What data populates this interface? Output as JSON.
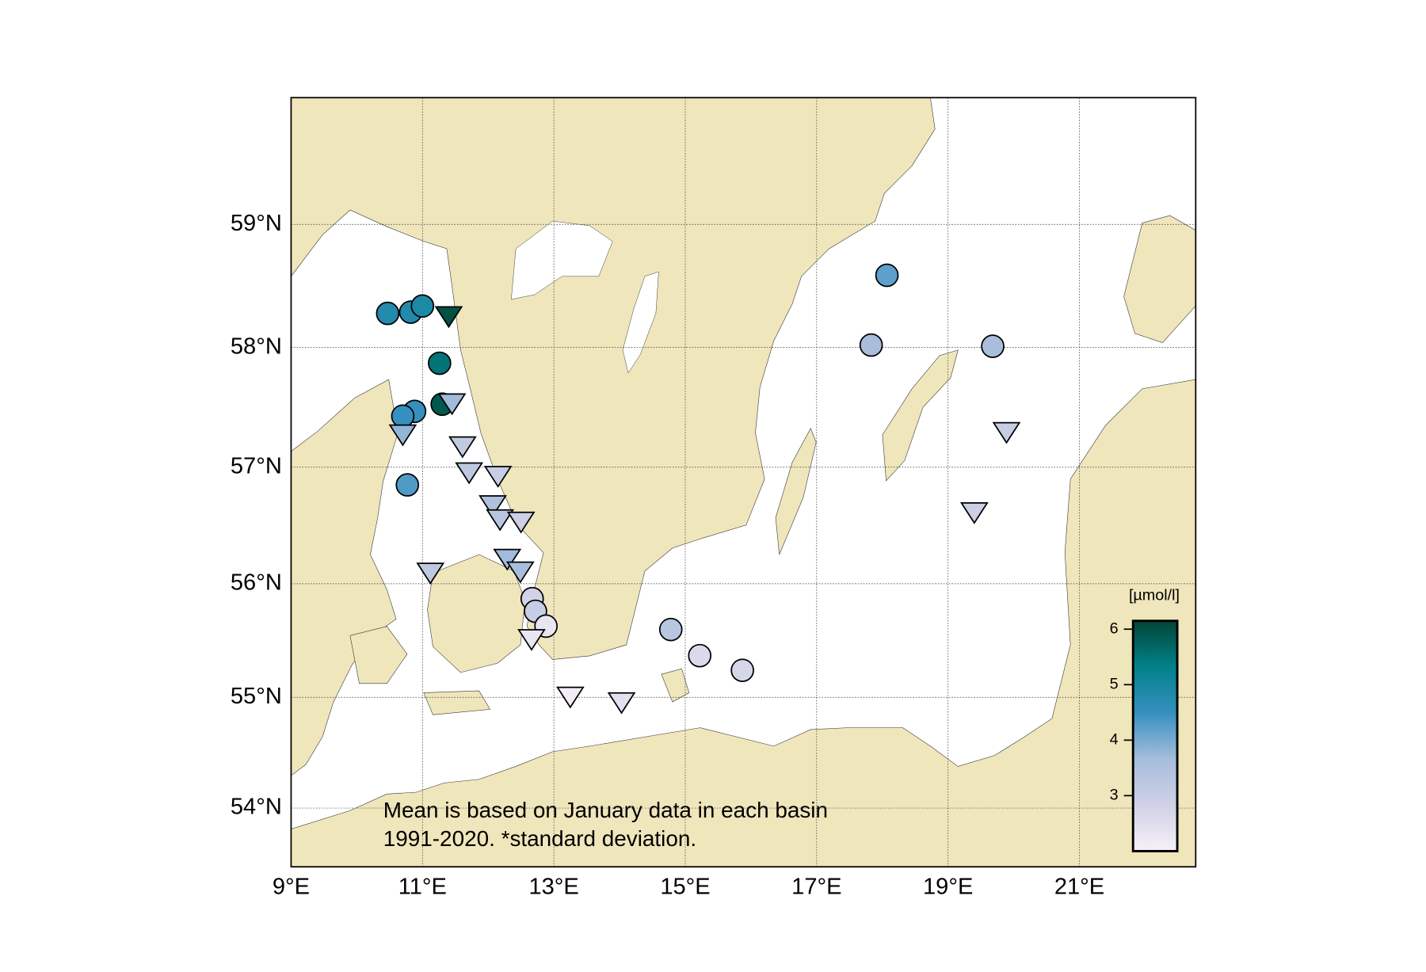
{
  "chart_data": {
    "type": "scatter",
    "annotation": [
      "Mean is based on January data in each basin",
      "1991-2020. *standard deviation."
    ],
    "xlim": [
      9,
      22.77
    ],
    "ylim": [
      53.46,
      60.0
    ],
    "projection": "mercator",
    "grid": true,
    "xticks": [
      {
        "value": 9,
        "label": "9°E"
      },
      {
        "value": 11,
        "label": "11°E"
      },
      {
        "value": 13,
        "label": "13°E"
      },
      {
        "value": 15,
        "label": "15°E"
      },
      {
        "value": 17,
        "label": "17°E"
      },
      {
        "value": 19,
        "label": "19°E"
      },
      {
        "value": 21,
        "label": "21°E"
      }
    ],
    "yticks": [
      {
        "value": 54,
        "label": "54°N"
      },
      {
        "value": 55,
        "label": "55°N"
      },
      {
        "value": 56,
        "label": "56°N"
      },
      {
        "value": 57,
        "label": "57°N"
      },
      {
        "value": 58,
        "label": "58°N"
      },
      {
        "value": 59,
        "label": "59°N"
      }
    ],
    "colorbar": {
      "label": "[µmol/l]",
      "clim": [
        2.0,
        6.15
      ],
      "ticks": [
        3,
        4,
        5,
        6
      ],
      "colormap": [
        "#f7f0f8",
        "#d0d1e6",
        "#a6bddb",
        "#3690c0",
        "#02818a",
        "#014636"
      ]
    },
    "series": [
      {
        "marker": "circle",
        "x": [
          18.07,
          17.83,
          19.68,
          10.47,
          10.82,
          11.0,
          11.26,
          11.3,
          10.88,
          10.7,
          10.77,
          12.67,
          12.72,
          12.88,
          14.78,
          15.22,
          15.87
        ],
        "y": [
          58.59,
          58.02,
          58.01,
          58.28,
          58.29,
          58.34,
          57.87,
          57.53,
          57.47,
          57.43,
          56.85,
          55.87,
          55.76,
          55.63,
          55.6,
          55.37,
          55.24
        ],
        "values": [
          4.2,
          3.6,
          3.6,
          4.8,
          4.8,
          4.9,
          5.5,
          5.9,
          4.5,
          4.5,
          4.3,
          2.8,
          3.0,
          2.3,
          3.3,
          2.6,
          2.7
        ]
      },
      {
        "marker": "triangle-down",
        "x": [
          11.4,
          11.45,
          10.7,
          11.61,
          11.71,
          12.15,
          12.07,
          12.18,
          12.5,
          12.29,
          12.49,
          11.12,
          12.66,
          13.25,
          14.03,
          19.89,
          19.4
        ],
        "y": [
          58.27,
          57.55,
          57.29,
          57.19,
          56.97,
          56.94,
          56.69,
          56.57,
          56.55,
          56.23,
          56.12,
          56.11,
          55.53,
          55.02,
          54.97,
          57.31,
          56.63
        ],
        "values": [
          6.0,
          3.7,
          3.8,
          3.1,
          3.2,
          3.0,
          3.5,
          3.3,
          2.9,
          3.7,
          3.6,
          3.2,
          2.3,
          2.1,
          2.4,
          3.0,
          2.9
        ]
      }
    ]
  }
}
